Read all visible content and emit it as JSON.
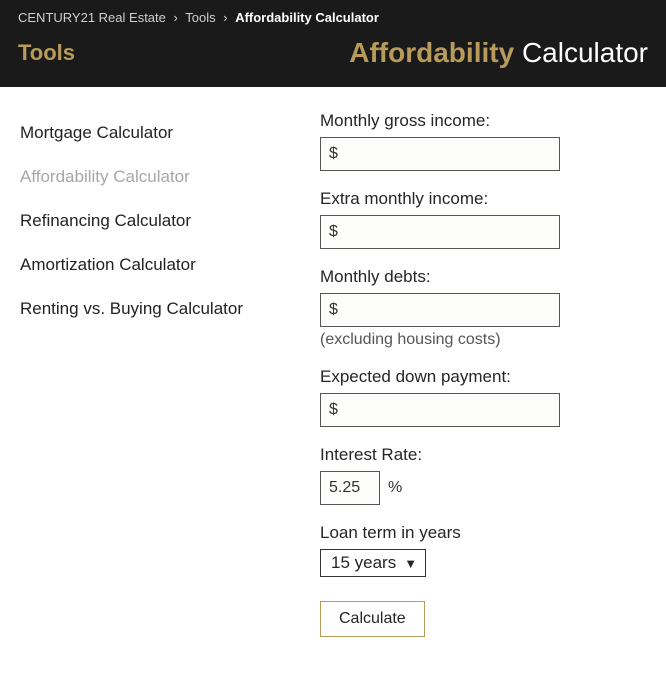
{
  "breadcrumb": {
    "home": "CENTURY21 Real Estate",
    "parent": "Tools",
    "current": "Affordability Calculator",
    "separator": "›"
  },
  "header": {
    "sidebar_title": "Tools",
    "page_title_accent": "Affordability",
    "page_title_rest": "Calculator"
  },
  "sidebar": {
    "items": [
      {
        "label": "Mortgage Calculator",
        "active": false
      },
      {
        "label": "Affordability Calculator",
        "active": true
      },
      {
        "label": "Refinancing Calculator",
        "active": false
      },
      {
        "label": "Amortization Calculator",
        "active": false
      },
      {
        "label": "Renting vs. Buying Calculator",
        "active": false
      }
    ]
  },
  "form": {
    "monthly_gross_income": {
      "label": "Monthly gross income:",
      "value": "$"
    },
    "extra_monthly_income": {
      "label": "Extra monthly income:",
      "value": "$"
    },
    "monthly_debts": {
      "label": "Monthly debts:",
      "value": "$",
      "help": "(excluding housing costs)"
    },
    "down_payment": {
      "label": "Expected down payment:",
      "value": "$"
    },
    "interest_rate": {
      "label": "Interest Rate:",
      "value": "5.25",
      "unit": "%"
    },
    "loan_term": {
      "label": "Loan term in years",
      "selected": "15 years"
    },
    "calculate_label": "Calculate"
  },
  "colors": {
    "header_bg": "#1a1a1a",
    "accent": "#b79b5a",
    "text": "#252526",
    "muted": "#a8a7a4",
    "input_border": "#555555",
    "white": "#ffffff"
  }
}
